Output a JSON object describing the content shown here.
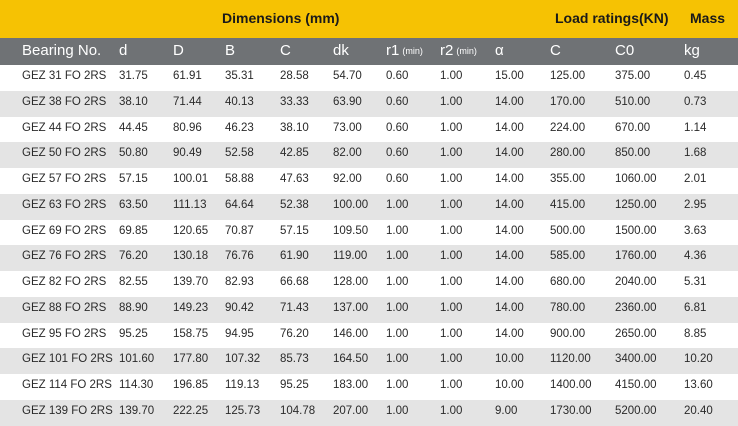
{
  "header": {
    "dimensions_label": "Dimensions (mm)",
    "load_label": "Load ratings(KN)",
    "mass_label": "Mass"
  },
  "columns": [
    {
      "label": "Bearing No.",
      "sub": ""
    },
    {
      "label": "d",
      "sub": ""
    },
    {
      "label": "D",
      "sub": ""
    },
    {
      "label": "B",
      "sub": ""
    },
    {
      "label": "C",
      "sub": ""
    },
    {
      "label": "dk",
      "sub": ""
    },
    {
      "label": "r1",
      "sub": "(min)"
    },
    {
      "label": "r2",
      "sub": "(min)"
    },
    {
      "label": "α",
      "sub": ""
    },
    {
      "label": "C",
      "sub": ""
    },
    {
      "label": "C0",
      "sub": ""
    },
    {
      "label": "kg",
      "sub": ""
    }
  ],
  "rows": [
    [
      "GEZ 31 FO 2RS",
      "31.75",
      "61.91",
      "35.31",
      "28.58",
      "54.70",
      "0.60",
      "1.00",
      "15.00",
      "125.00",
      "375.00",
      "0.45"
    ],
    [
      "GEZ 38 FO 2RS",
      "38.10",
      "71.44",
      "40.13",
      "33.33",
      "63.90",
      "0.60",
      "1.00",
      "14.00",
      "170.00",
      "510.00",
      "0.73"
    ],
    [
      "GEZ 44 FO 2RS",
      "44.45",
      "80.96",
      "46.23",
      "38.10",
      "73.00",
      "0.60",
      "1.00",
      "14.00",
      "224.00",
      "670.00",
      "1.14"
    ],
    [
      "GEZ 50 FO 2RS",
      "50.80",
      "90.49",
      "52.58",
      "42.85",
      "82.00",
      "0.60",
      "1.00",
      "14.00",
      "280.00",
      "850.00",
      "1.68"
    ],
    [
      "GEZ 57 FO 2RS",
      "57.15",
      "100.01",
      "58.88",
      "47.63",
      "92.00",
      "0.60",
      "1.00",
      "14.00",
      "355.00",
      "1060.00",
      "2.01"
    ],
    [
      "GEZ 63 FO 2RS",
      "63.50",
      "111.13",
      "64.64",
      "52.38",
      "100.00",
      "1.00",
      "1.00",
      "14.00",
      "415.00",
      "1250.00",
      "2.95"
    ],
    [
      "GEZ 69 FO 2RS",
      "69.85",
      "120.65",
      "70.87",
      "57.15",
      "109.50",
      "1.00",
      "1.00",
      "14.00",
      "500.00",
      "1500.00",
      "3.63"
    ],
    [
      "GEZ 76 FO 2RS",
      "76.20",
      "130.18",
      "76.76",
      "61.90",
      "119.00",
      "1.00",
      "1.00",
      "14.00",
      "585.00",
      "1760.00",
      "4.36"
    ],
    [
      "GEZ 82 FO 2RS",
      "82.55",
      "139.70",
      "82.93",
      "66.68",
      "128.00",
      "1.00",
      "1.00",
      "14.00",
      "680.00",
      "2040.00",
      "5.31"
    ],
    [
      "GEZ 88 FO 2RS",
      "88.90",
      "149.23",
      "90.42",
      "71.43",
      "137.00",
      "1.00",
      "1.00",
      "14.00",
      "780.00",
      "2360.00",
      "6.81"
    ],
    [
      "GEZ 95 FO 2RS",
      "95.25",
      "158.75",
      "94.95",
      "76.20",
      "146.00",
      "1.00",
      "1.00",
      "14.00",
      "900.00",
      "2650.00",
      "8.85"
    ],
    [
      "GEZ 101 FO 2RS",
      "101.60",
      "177.80",
      "107.32",
      "85.73",
      "164.50",
      "1.00",
      "1.00",
      "10.00",
      "1120.00",
      "3400.00",
      "10.20"
    ],
    [
      "GEZ 114 FO 2RS",
      "114.30",
      "196.85",
      "119.13",
      "95.25",
      "183.00",
      "1.00",
      "1.00",
      "10.00",
      "1400.00",
      "4150.00",
      "13.60"
    ],
    [
      "GEZ 139 FO 2RS",
      "139.70",
      "222.25",
      "125.73",
      "104.78",
      "207.00",
      "1.00",
      "1.00",
      "9.00",
      "1730.00",
      "5200.00",
      "20.40"
    ]
  ]
}
